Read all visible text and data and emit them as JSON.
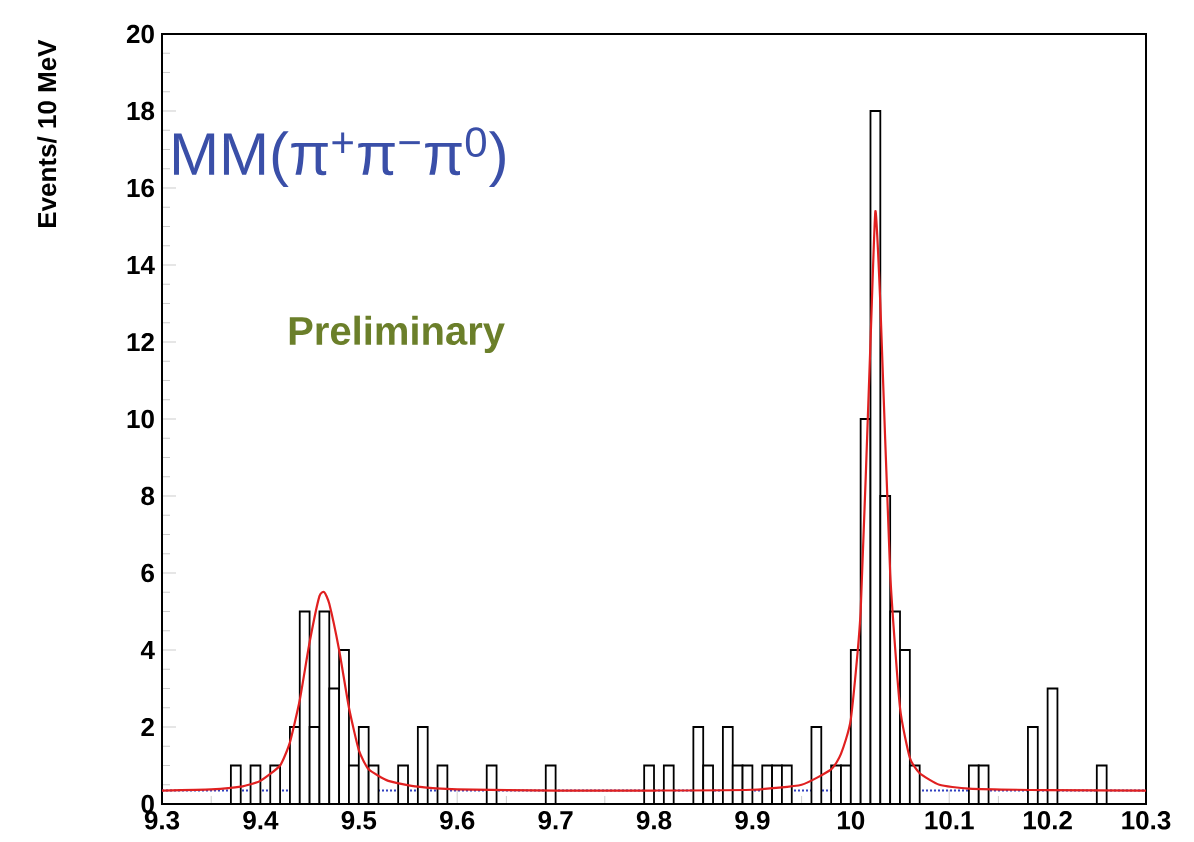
{
  "chart_data": {
    "type": "histogram",
    "ylabel": "Events/ 10 MeV",
    "annotations": [
      "MM(π$^{+}$π$^{−}$π$^{0}$)",
      "Preliminary"
    ],
    "xlim": [
      9.3,
      10.3
    ],
    "ylim": [
      0,
      20
    ],
    "xticks": [
      9.3,
      9.4,
      9.5,
      9.6,
      9.7,
      9.8,
      9.9,
      10,
      10.1,
      10.2,
      10.3
    ],
    "yticks": [
      0,
      2,
      4,
      6,
      8,
      10,
      12,
      14,
      16,
      18,
      20
    ],
    "grid": false,
    "bins": [
      9.3,
      9.31,
      9.32,
      9.33,
      9.34,
      9.35,
      9.36,
      9.37,
      9.38,
      9.39,
      9.4,
      9.41,
      9.42,
      9.43,
      9.44,
      9.45,
      9.46,
      9.47,
      9.48,
      9.49,
      9.5,
      9.51,
      9.52,
      9.53,
      9.54,
      9.55,
      9.56,
      9.57,
      9.58,
      9.59,
      9.6,
      9.61,
      9.62,
      9.63,
      9.64,
      9.65,
      9.66,
      9.67,
      9.68,
      9.69,
      9.7,
      9.71,
      9.72,
      9.73,
      9.74,
      9.75,
      9.76,
      9.77,
      9.78,
      9.79,
      9.8,
      9.81,
      9.82,
      9.83,
      9.84,
      9.85,
      9.86,
      9.87,
      9.88,
      9.89,
      9.9,
      9.91,
      9.92,
      9.93,
      9.94,
      9.95,
      9.96,
      9.97,
      9.98,
      9.99,
      10.0,
      10.01,
      10.02,
      10.03,
      10.04,
      10.05,
      10.06,
      10.07,
      10.08,
      10.09,
      10.1,
      10.11,
      10.12,
      10.13,
      10.14,
      10.15,
      10.16,
      10.17,
      10.18,
      10.19,
      10.2,
      10.21,
      10.22,
      10.23,
      10.24,
      10.25,
      10.26,
      10.27,
      10.28,
      10.29,
      10.3
    ],
    "series": [
      {
        "color": "#000000",
        "values": [
          0,
          0,
          0,
          0,
          0,
          0,
          0,
          1,
          0,
          1,
          0,
          1,
          0,
          2,
          5,
          2,
          5,
          3,
          4,
          1,
          2,
          1,
          0,
          0,
          1,
          0,
          2,
          0,
          1,
          0,
          0,
          0,
          0,
          1,
          0,
          0,
          0,
          0,
          0,
          1,
          0,
          0,
          0,
          0,
          0,
          0,
          0,
          0,
          0,
          1,
          0,
          1,
          0,
          0,
          2,
          1,
          0,
          2,
          1,
          1,
          0,
          1,
          1,
          1,
          0,
          0,
          2,
          0,
          1,
          1,
          4,
          10,
          18,
          8,
          5,
          4,
          1,
          0,
          0,
          0,
          0,
          0,
          1,
          1,
          0,
          0,
          0,
          0,
          2,
          0,
          3,
          0,
          0,
          0,
          0,
          1,
          0,
          0,
          0,
          0
        ]
      },
      {
        "type": "line",
        "color": "#e02020",
        "line_style": "solid",
        "marker": "none",
        "x": [
          9.3,
          9.35,
          9.38,
          9.4,
          9.42,
          9.43,
          9.44,
          9.45,
          9.46,
          9.465,
          9.47,
          9.48,
          9.49,
          9.5,
          9.51,
          9.53,
          9.56,
          9.6,
          9.7,
          9.8,
          9.9,
          9.95,
          9.98,
          9.99,
          10.0,
          10.01,
          10.02,
          10.025,
          10.03,
          10.04,
          10.05,
          10.06,
          10.07,
          10.09,
          10.12,
          10.2,
          10.3
        ],
        "values": [
          0.35,
          0.38,
          0.45,
          0.6,
          1.0,
          1.6,
          2.7,
          4.2,
          5.4,
          5.5,
          5.2,
          4.0,
          2.5,
          1.4,
          0.9,
          0.6,
          0.45,
          0.38,
          0.35,
          0.35,
          0.37,
          0.5,
          0.9,
          1.3,
          2.2,
          5.0,
          12.0,
          15.4,
          13.0,
          6.0,
          2.5,
          1.2,
          0.8,
          0.5,
          0.4,
          0.36,
          0.35
        ]
      }
    ],
    "ref_lines": [
      {
        "axis": "y",
        "value": 0.35,
        "color": "#3040c0",
        "line_style": "dotted"
      }
    ]
  }
}
